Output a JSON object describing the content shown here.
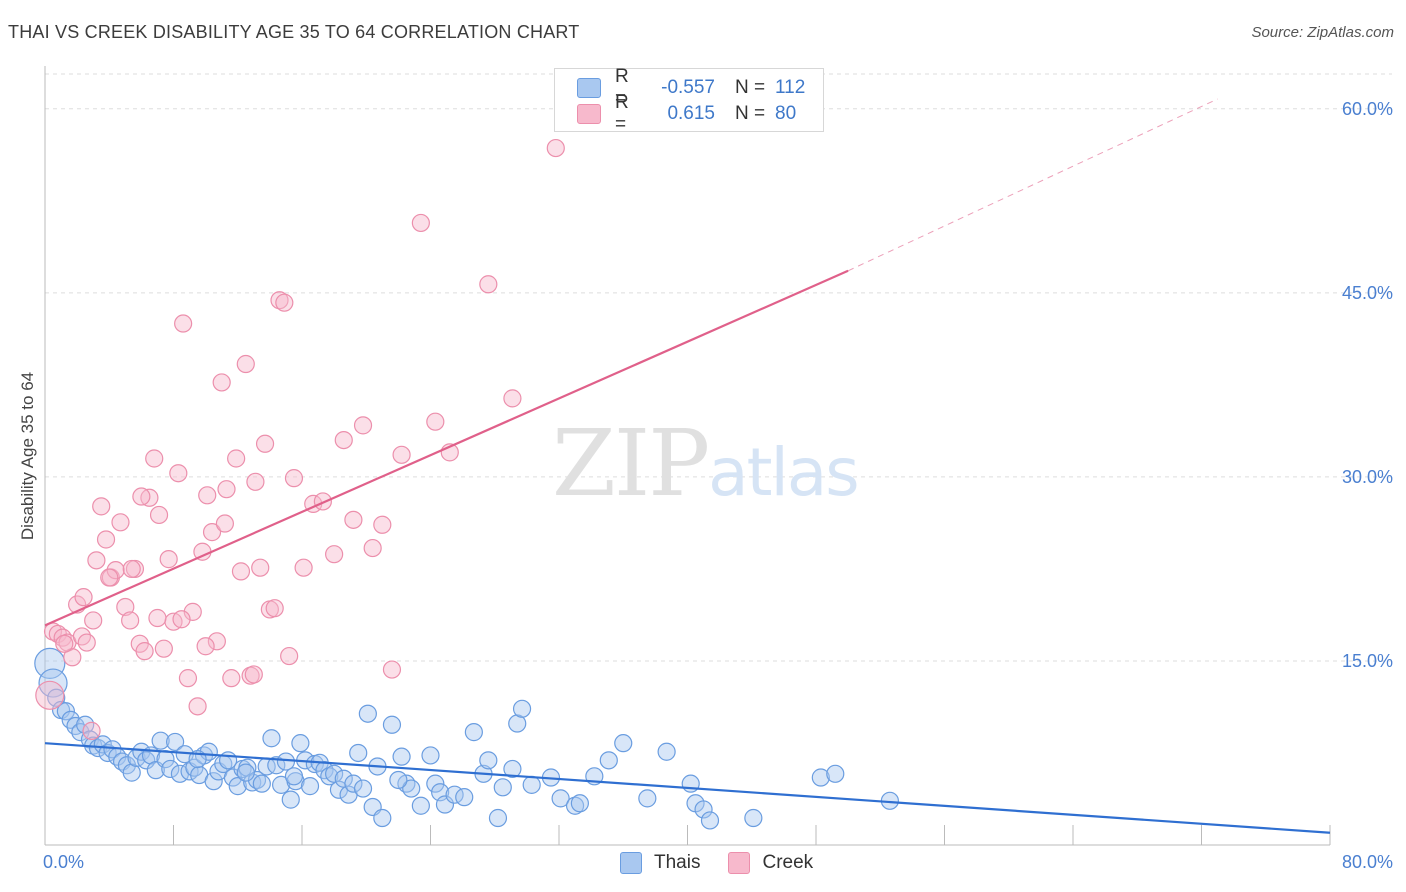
{
  "header": {
    "title": "THAI VS CREEK DISABILITY AGE 35 TO 64 CORRELATION CHART",
    "source": "Source: ZipAtlas.com"
  },
  "watermark": {
    "zip": "ZIP",
    "atlas": "atlas"
  },
  "legend": {
    "rows": [
      {
        "series": "Thais",
        "r_label": "R =",
        "r_value": "-0.557",
        "n_label": "N =",
        "n_value": "112"
      },
      {
        "series": "Creek",
        "r_label": "R =",
        "r_value": "0.615",
        "n_label": "N =",
        "n_value": "80"
      }
    ]
  },
  "bottom_legend": {
    "thais": "Thais",
    "creek": "Creek"
  },
  "colors": {
    "thais_fill": "#a9c8f0",
    "thais_stroke": "#6a9de0",
    "thais_line": "#2f6fd1",
    "creek_fill": "#f7b9cc",
    "creek_stroke": "#ec8fac",
    "creek_line": "#e0608a",
    "grid": "#dddddd",
    "tick_text": "#4a7fd0"
  },
  "chart_data": {
    "type": "scatter",
    "title": "THAI VS CREEK DISABILITY AGE 35 TO 64 CORRELATION CHART",
    "xlabel": "",
    "ylabel": "Disability Age 35 to 64",
    "xlim": [
      0,
      80
    ],
    "ylim": [
      0,
      63
    ],
    "x_tick_labels": [
      "0.0%",
      "80.0%"
    ],
    "y_ticks": [
      15,
      30,
      45,
      60
    ],
    "y_tick_labels": [
      "15.0%",
      "30.0%",
      "45.0%",
      "60.0%"
    ],
    "grid": "horizontal dashed",
    "legend_position": "top-center",
    "series": [
      {
        "name": "Thais",
        "trend": {
          "x": [
            0,
            80
          ],
          "y": [
            8.3,
            1.0
          ],
          "style": "solid"
        },
        "points": [
          [
            0.3,
            14.8
          ],
          [
            0.5,
            13.2
          ],
          [
            0.7,
            12.0
          ],
          [
            1.0,
            11.0
          ],
          [
            1.3,
            10.9
          ],
          [
            1.6,
            10.2
          ],
          [
            1.9,
            9.7
          ],
          [
            2.2,
            9.2
          ],
          [
            2.5,
            9.8
          ],
          [
            2.8,
            8.6
          ],
          [
            3.0,
            8.1
          ],
          [
            3.3,
            7.9
          ],
          [
            3.6,
            8.2
          ],
          [
            3.9,
            7.5
          ],
          [
            4.2,
            7.8
          ],
          [
            4.5,
            7.2
          ],
          [
            4.8,
            6.8
          ],
          [
            5.1,
            6.5
          ],
          [
            5.4,
            5.9
          ],
          [
            5.7,
            7.1
          ],
          [
            6.0,
            7.6
          ],
          [
            6.3,
            6.9
          ],
          [
            6.6,
            7.3
          ],
          [
            6.9,
            6.1
          ],
          [
            7.2,
            8.5
          ],
          [
            7.5,
            7.0
          ],
          [
            7.8,
            6.2
          ],
          [
            8.1,
            8.4
          ],
          [
            8.4,
            5.8
          ],
          [
            8.7,
            7.4
          ],
          [
            9.0,
            6.0
          ],
          [
            9.3,
            6.3
          ],
          [
            9.6,
            5.7
          ],
          [
            9.9,
            7.3
          ],
          [
            10.2,
            7.6
          ],
          [
            10.5,
            5.2
          ],
          [
            10.8,
            6.0
          ],
          [
            11.1,
            6.6
          ],
          [
            11.4,
            6.9
          ],
          [
            11.7,
            5.5
          ],
          [
            12.0,
            4.8
          ],
          [
            12.3,
            6.2
          ],
          [
            12.6,
            6.3
          ],
          [
            12.9,
            5.1
          ],
          [
            13.2,
            5.3
          ],
          [
            13.5,
            5.0
          ],
          [
            13.8,
            6.4
          ],
          [
            14.1,
            8.7
          ],
          [
            14.4,
            6.5
          ],
          [
            14.7,
            4.9
          ],
          [
            15.0,
            6.8
          ],
          [
            15.3,
            3.7
          ],
          [
            15.6,
            5.2
          ],
          [
            15.9,
            8.3
          ],
          [
            16.2,
            6.9
          ],
          [
            16.5,
            4.8
          ],
          [
            16.8,
            6.6
          ],
          [
            17.1,
            6.7
          ],
          [
            17.4,
            6.1
          ],
          [
            17.7,
            5.6
          ],
          [
            18.0,
            5.8
          ],
          [
            18.3,
            4.5
          ],
          [
            18.6,
            5.4
          ],
          [
            18.9,
            4.1
          ],
          [
            19.2,
            5.0
          ],
          [
            19.5,
            7.5
          ],
          [
            19.8,
            4.6
          ],
          [
            20.1,
            10.7
          ],
          [
            20.4,
            3.1
          ],
          [
            20.7,
            6.4
          ],
          [
            21.0,
            2.2
          ],
          [
            21.6,
            9.8
          ],
          [
            22.2,
            7.2
          ],
          [
            22.5,
            5.0
          ],
          [
            22.8,
            4.6
          ],
          [
            23.4,
            3.2
          ],
          [
            24.0,
            7.3
          ],
          [
            24.3,
            5.0
          ],
          [
            24.6,
            4.3
          ],
          [
            24.9,
            3.3
          ],
          [
            25.5,
            4.1
          ],
          [
            26.1,
            3.9
          ],
          [
            26.7,
            9.2
          ],
          [
            27.3,
            5.8
          ],
          [
            27.6,
            6.9
          ],
          [
            28.2,
            2.2
          ],
          [
            28.5,
            4.7
          ],
          [
            29.1,
            6.2
          ],
          [
            29.4,
            9.9
          ],
          [
            29.7,
            11.1
          ],
          [
            30.3,
            4.9
          ],
          [
            31.5,
            5.5
          ],
          [
            32.1,
            3.8
          ],
          [
            33.0,
            3.2
          ],
          [
            33.3,
            3.4
          ],
          [
            34.2,
            5.6
          ],
          [
            35.1,
            6.9
          ],
          [
            36.0,
            8.3
          ],
          [
            37.5,
            3.8
          ],
          [
            38.7,
            7.6
          ],
          [
            40.2,
            5.0
          ],
          [
            40.5,
            3.4
          ],
          [
            41.0,
            2.9
          ],
          [
            41.4,
            2.0
          ],
          [
            44.1,
            2.2
          ],
          [
            48.3,
            5.5
          ],
          [
            49.2,
            5.8
          ],
          [
            52.6,
            3.6
          ],
          [
            15.5,
            5.6
          ],
          [
            22.0,
            5.3
          ],
          [
            9.5,
            7.0
          ],
          [
            12.5,
            5.9
          ]
        ]
      },
      {
        "name": "Creek",
        "trend": {
          "x": [
            0,
            50
          ],
          "y": [
            17.9,
            46.8
          ],
          "dashed_to": [
            73,
            60.8
          ],
          "style": "solid-then-dashed"
        },
        "points": [
          [
            0.3,
            12.2
          ],
          [
            0.5,
            17.4
          ],
          [
            0.8,
            17.2
          ],
          [
            1.1,
            16.9
          ],
          [
            1.4,
            16.5
          ],
          [
            1.7,
            15.3
          ],
          [
            2.0,
            19.6
          ],
          [
            2.3,
            17.0
          ],
          [
            2.6,
            16.5
          ],
          [
            2.9,
            9.3
          ],
          [
            3.2,
            23.2
          ],
          [
            3.5,
            27.6
          ],
          [
            3.8,
            24.9
          ],
          [
            4.1,
            21.8
          ],
          [
            4.4,
            22.4
          ],
          [
            4.7,
            26.3
          ],
          [
            5.0,
            19.4
          ],
          [
            5.3,
            18.3
          ],
          [
            5.6,
            22.5
          ],
          [
            5.9,
            16.4
          ],
          [
            6.2,
            15.8
          ],
          [
            6.5,
            28.3
          ],
          [
            6.8,
            31.5
          ],
          [
            7.1,
            26.9
          ],
          [
            7.4,
            16.0
          ],
          [
            7.7,
            23.3
          ],
          [
            8.0,
            18.2
          ],
          [
            8.3,
            30.3
          ],
          [
            8.6,
            42.5
          ],
          [
            8.9,
            13.6
          ],
          [
            9.2,
            19.0
          ],
          [
            9.5,
            11.3
          ],
          [
            9.8,
            23.9
          ],
          [
            10.1,
            28.5
          ],
          [
            10.4,
            25.5
          ],
          [
            10.7,
            16.6
          ],
          [
            11.0,
            37.7
          ],
          [
            11.3,
            29.0
          ],
          [
            11.6,
            13.6
          ],
          [
            11.9,
            31.5
          ],
          [
            12.2,
            22.3
          ],
          [
            12.5,
            39.2
          ],
          [
            12.8,
            13.8
          ],
          [
            13.1,
            29.6
          ],
          [
            13.4,
            22.6
          ],
          [
            13.7,
            32.7
          ],
          [
            14.0,
            19.2
          ],
          [
            14.3,
            19.3
          ],
          [
            14.6,
            44.4
          ],
          [
            14.9,
            44.2
          ],
          [
            15.2,
            15.4
          ],
          [
            15.5,
            29.9
          ],
          [
            16.1,
            22.6
          ],
          [
            16.7,
            27.8
          ],
          [
            17.3,
            28.0
          ],
          [
            18.0,
            23.7
          ],
          [
            18.6,
            33.0
          ],
          [
            19.2,
            26.5
          ],
          [
            19.8,
            34.2
          ],
          [
            20.4,
            24.2
          ],
          [
            21.0,
            26.1
          ],
          [
            21.6,
            14.3
          ],
          [
            22.2,
            31.8
          ],
          [
            23.4,
            50.7
          ],
          [
            24.3,
            34.5
          ],
          [
            25.2,
            32.0
          ],
          [
            27.6,
            45.7
          ],
          [
            29.1,
            36.4
          ],
          [
            31.8,
            56.8
          ],
          [
            4.0,
            21.8
          ],
          [
            6.0,
            28.4
          ],
          [
            7.0,
            18.5
          ],
          [
            2.4,
            20.2
          ],
          [
            3.0,
            18.3
          ],
          [
            1.2,
            16.4
          ],
          [
            5.4,
            22.5
          ],
          [
            8.5,
            18.4
          ],
          [
            10.0,
            16.2
          ],
          [
            13.0,
            13.9
          ],
          [
            11.2,
            26.2
          ]
        ]
      }
    ]
  }
}
